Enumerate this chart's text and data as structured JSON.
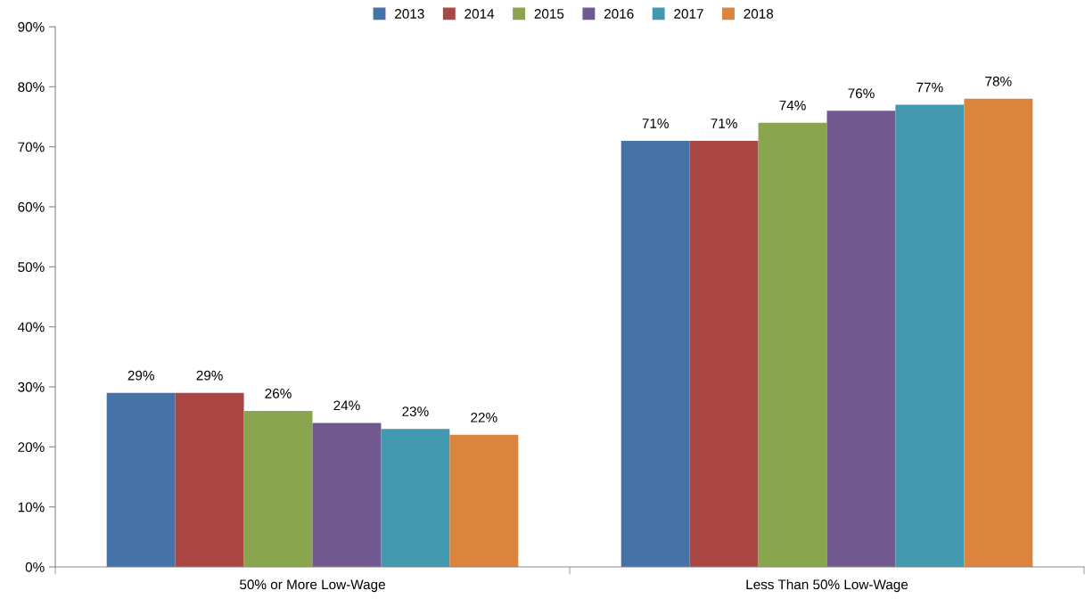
{
  "chart_data": {
    "type": "bar",
    "categories": [
      "50% or More Low-Wage",
      "Less Than 50% Low-Wage"
    ],
    "series": [
      {
        "name": "2013",
        "color": "#4572a7",
        "values": [
          29,
          71
        ],
        "value_labels": [
          "29%",
          "71%"
        ]
      },
      {
        "name": "2014",
        "color": "#aa4643",
        "values": [
          29,
          71
        ],
        "value_labels": [
          "29%",
          "71%"
        ]
      },
      {
        "name": "2015",
        "color": "#89a54e",
        "values": [
          26,
          74
        ],
        "value_labels": [
          "26%",
          "74%"
        ]
      },
      {
        "name": "2016",
        "color": "#71588f",
        "values": [
          24,
          76
        ],
        "value_labels": [
          "24%",
          "76%"
        ]
      },
      {
        "name": "2017",
        "color": "#4198af",
        "values": [
          23,
          77
        ],
        "value_labels": [
          "23%",
          "77%"
        ]
      },
      {
        "name": "2018",
        "color": "#db843d",
        "values": [
          22,
          78
        ],
        "value_labels": [
          "22%",
          "78%"
        ]
      }
    ],
    "ylim": [
      0,
      90
    ],
    "yticks": [
      {
        "value": 0,
        "label": "0%"
      },
      {
        "value": 10,
        "label": "10%"
      },
      {
        "value": 20,
        "label": "20%"
      },
      {
        "value": 30,
        "label": "30%"
      },
      {
        "value": 40,
        "label": "40%"
      },
      {
        "value": 50,
        "label": "50%"
      },
      {
        "value": 60,
        "label": "60%"
      },
      {
        "value": 70,
        "label": "70%"
      },
      {
        "value": 80,
        "label": "80%"
      },
      {
        "value": 90,
        "label": "90%"
      }
    ],
    "grid": false,
    "legend": "top"
  }
}
